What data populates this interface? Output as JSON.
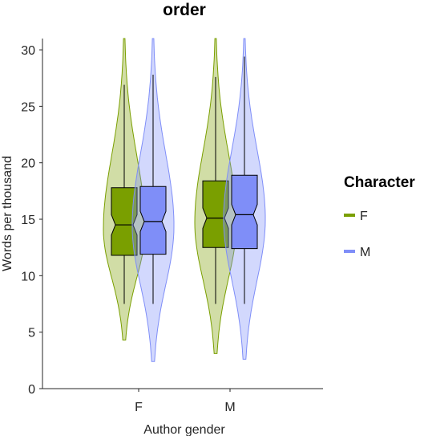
{
  "chart_data": {
    "type": "violin",
    "title": "order",
    "xlabel": "Author gender",
    "ylabel": "Words per thousand",
    "ylim": [
      0,
      31
    ],
    "yticks": [
      0,
      5,
      10,
      15,
      20,
      25,
      30
    ],
    "categories": [
      "F",
      "M"
    ],
    "legend": {
      "title": "Character",
      "position": "right"
    },
    "series": [
      {
        "name": "F",
        "color": "#7a9f00",
        "groups": [
          {
            "category": "F",
            "min": 4.3,
            "max": 31,
            "whisker_low": 7.5,
            "whisker_high": 26.9,
            "q1": 11.8,
            "median": 14.5,
            "q3": 17.8,
            "notch_low": 13.6,
            "notch_high": 15.4
          },
          {
            "category": "M",
            "min": 3.1,
            "max": 31,
            "whisker_low": 7.5,
            "whisker_high": 27.6,
            "q1": 12.5,
            "median": 15.1,
            "q3": 18.4,
            "notch_low": 14.2,
            "notch_high": 16.0
          }
        ]
      },
      {
        "name": "M",
        "color": "#7f8ef8",
        "groups": [
          {
            "category": "F",
            "min": 2.4,
            "max": 31,
            "whisker_low": 7.5,
            "whisker_high": 27.8,
            "q1": 11.9,
            "median": 14.8,
            "q3": 17.9,
            "notch_low": 13.9,
            "notch_high": 15.7
          },
          {
            "category": "M",
            "min": 2.6,
            "max": 31,
            "whisker_low": 7.5,
            "whisker_high": 29.4,
            "q1": 12.4,
            "median": 15.4,
            "q3": 18.9,
            "notch_low": 14.5,
            "notch_high": 16.3
          }
        ]
      }
    ]
  }
}
